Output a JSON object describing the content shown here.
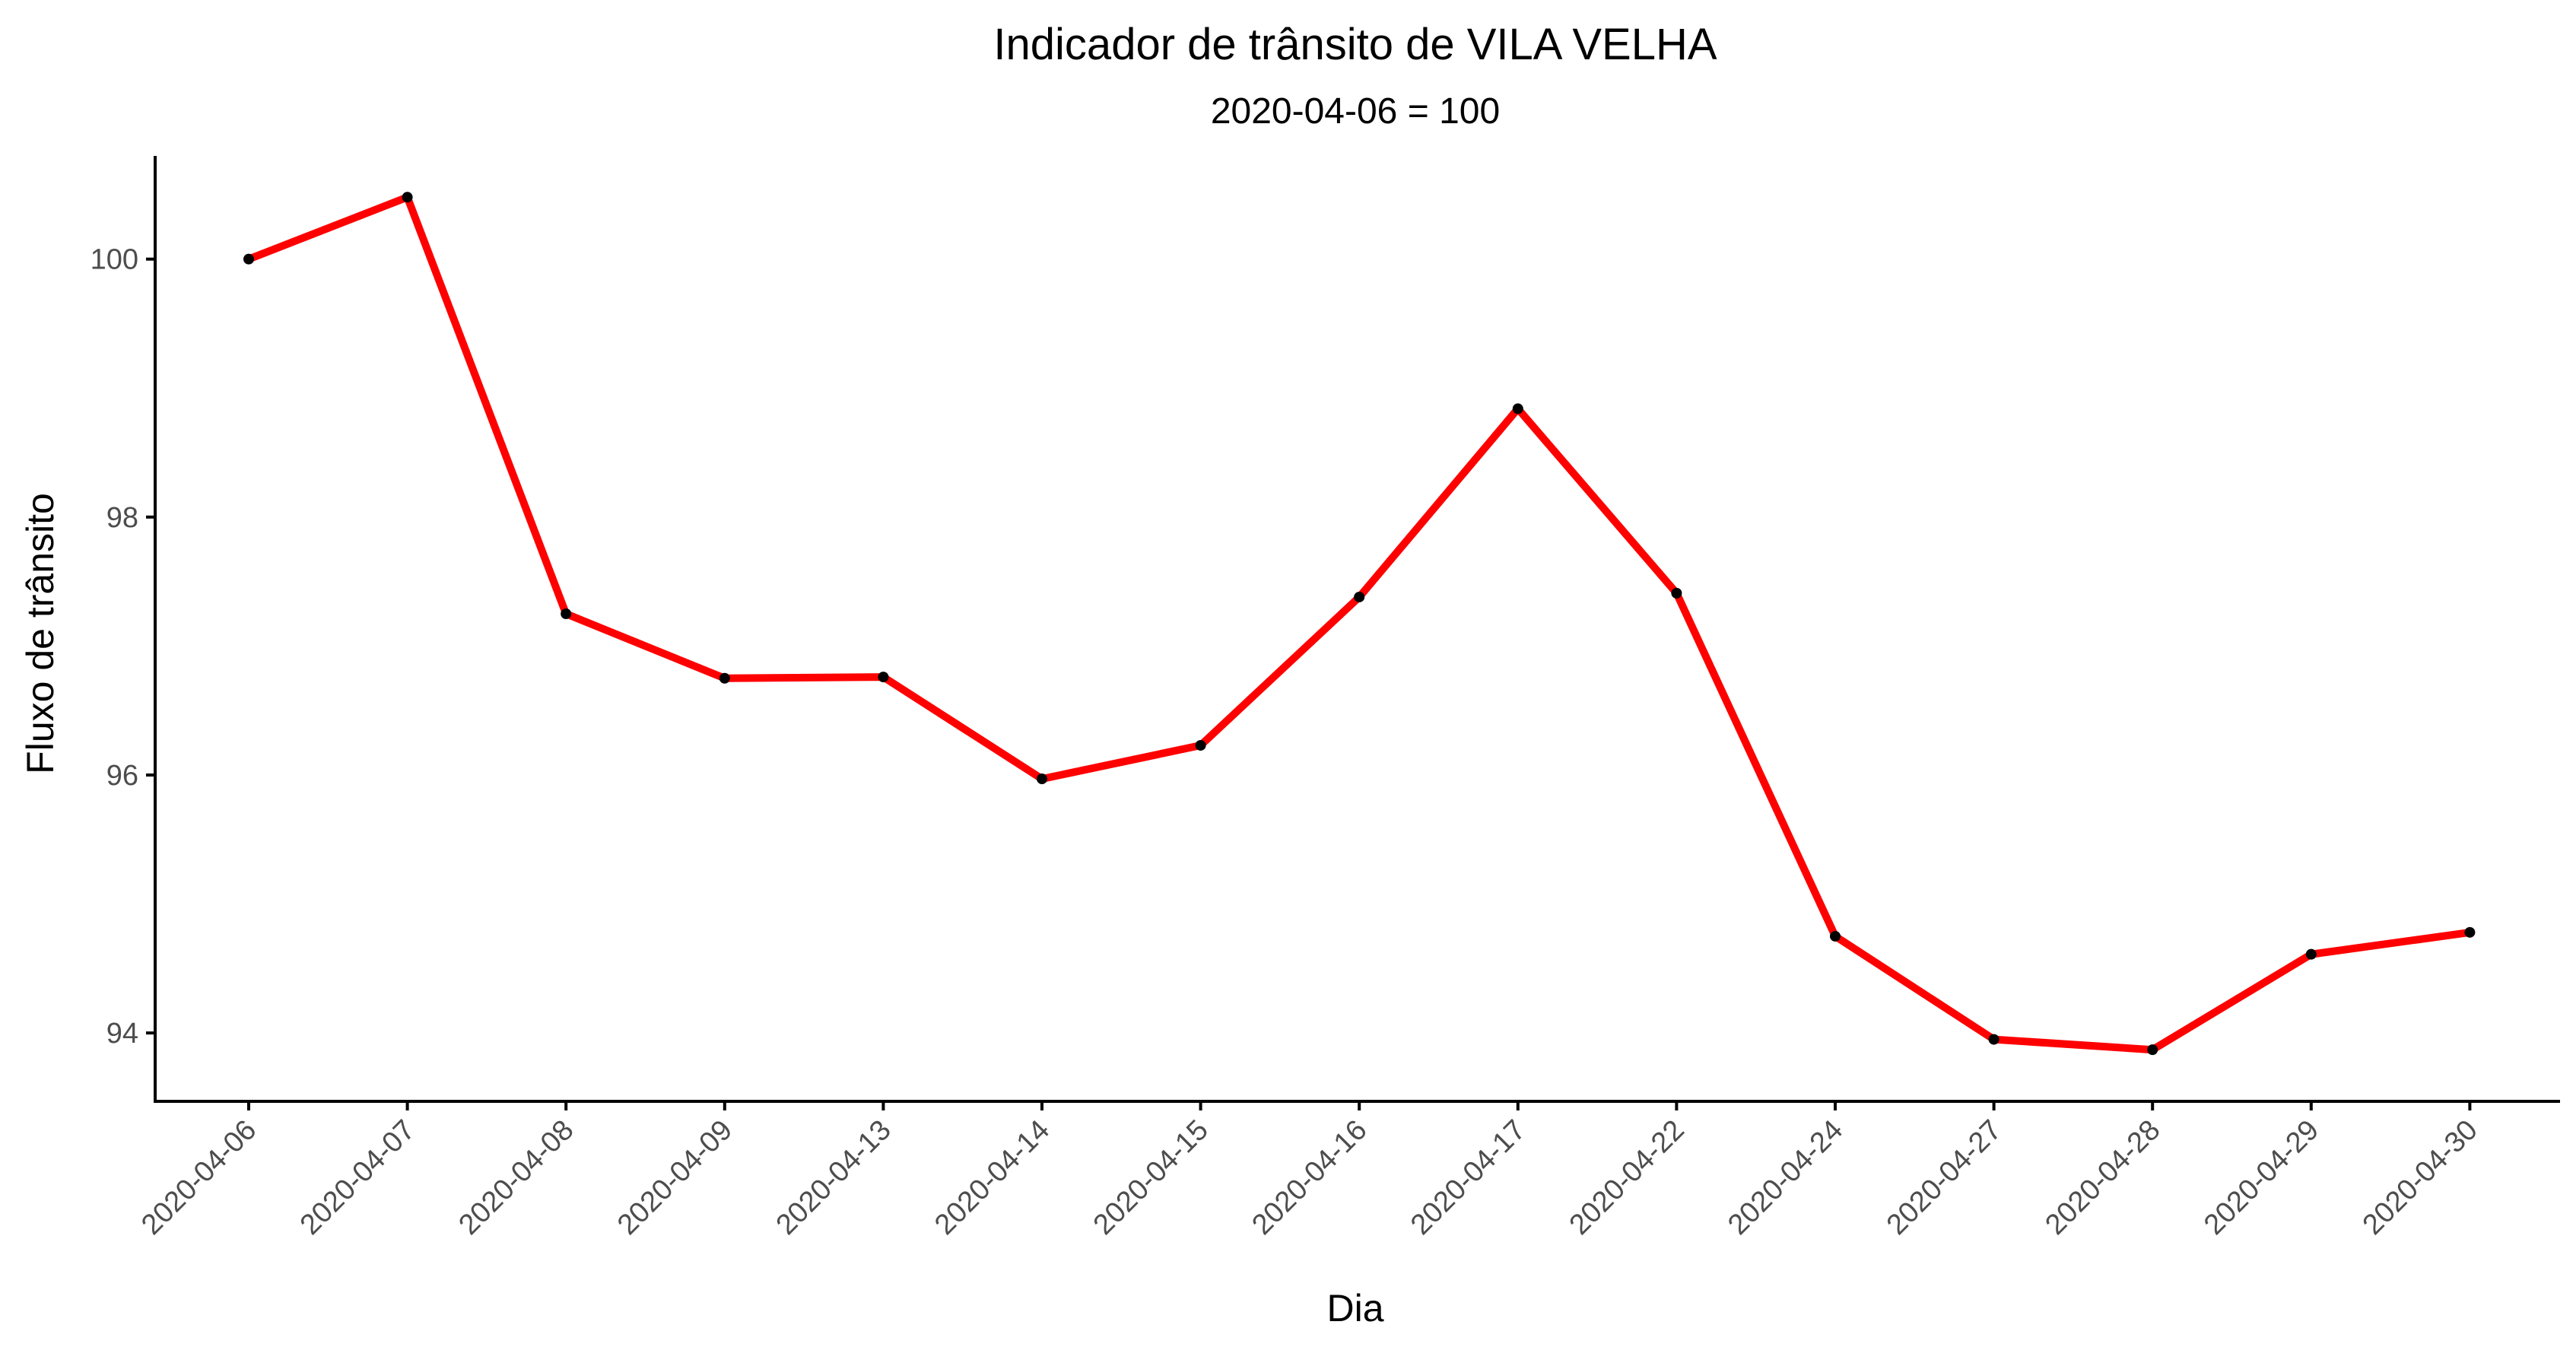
{
  "chart_data": {
    "type": "line",
    "title": "Indicador de trânsito de VILA VELHA",
    "subtitle": "2020-04-06 = 100",
    "xlabel": "Dia",
    "ylabel": "Fluxo de trânsito",
    "categories": [
      "2020-04-06",
      "2020-04-07",
      "2020-04-08",
      "2020-04-09",
      "2020-04-13",
      "2020-04-14",
      "2020-04-15",
      "2020-04-16",
      "2020-04-17",
      "2020-04-22",
      "2020-04-24",
      "2020-04-27",
      "2020-04-28",
      "2020-04-29",
      "2020-04-30"
    ],
    "series": [
      {
        "values": [
          100.0,
          100.48,
          97.25,
          96.75,
          96.76,
          95.97,
          96.23,
          97.38,
          98.84,
          97.41,
          94.75,
          93.95,
          93.87,
          94.61,
          94.78
        ]
      }
    ],
    "yticks": [
      94,
      96,
      98,
      100
    ],
    "ylim": [
      93.47,
      100.8
    ],
    "grid": false,
    "colors": {
      "line": "#ff0000",
      "point": "#000000",
      "axis": "#000000",
      "tick_label": "#4d4d4d"
    }
  }
}
